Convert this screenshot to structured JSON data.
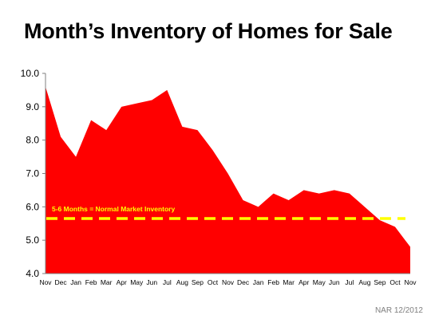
{
  "title": "Month’s Inventory of Homes for Sale",
  "source": "NAR 12/2012",
  "colors": {
    "area": "#ff0000",
    "reference_line": "#ffff00",
    "annotation": "#ffff00"
  },
  "chart_data": {
    "type": "area",
    "title": "Month’s Inventory of Homes for Sale",
    "xlabel": "",
    "ylabel": "",
    "ylim": [
      4.0,
      10.0
    ],
    "yticks": [
      "4.0",
      "5.0",
      "6.0",
      "7.0",
      "8.0",
      "9.0",
      "10.0"
    ],
    "grid": false,
    "x": [
      "Nov",
      "Dec",
      "Jan",
      "Feb",
      "Mar",
      "Apr",
      "May",
      "Jun",
      "Jul",
      "Aug",
      "Sep",
      "Oct",
      "Nov",
      "Dec",
      "Jan",
      "Feb",
      "Mar",
      "Apr",
      "May",
      "Jun",
      "Jul",
      "Aug",
      "Sep",
      "Oct",
      "Nov"
    ],
    "values": [
      9.6,
      8.1,
      7.5,
      8.6,
      8.3,
      9.0,
      9.1,
      9.2,
      9.5,
      8.4,
      8.3,
      7.7,
      7.0,
      6.2,
      6.0,
      6.4,
      6.2,
      6.5,
      6.4,
      6.5,
      6.4,
      6.0,
      5.6,
      5.4,
      4.8
    ],
    "reference_line": {
      "value": 5.65,
      "style": "dashed"
    },
    "annotation": "5-6 Months = Normal Market Inventory"
  }
}
